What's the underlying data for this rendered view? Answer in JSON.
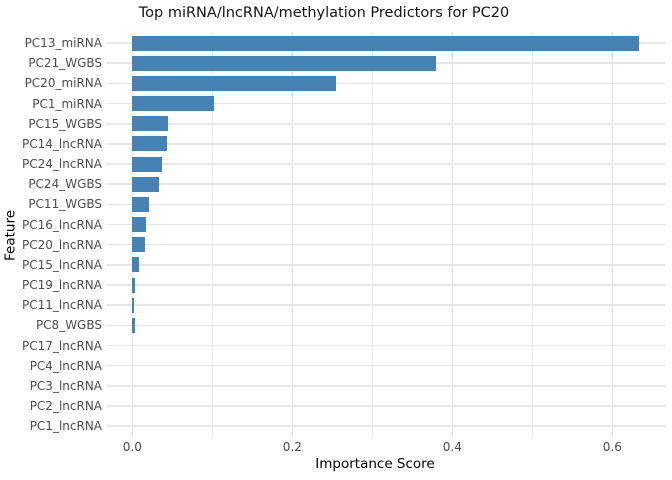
{
  "chart_data": {
    "type": "bar",
    "orientation": "horizontal",
    "title": "Top miRNA/lncRNA/methylation Predictors for PC20",
    "xlabel": "Importance Score",
    "ylabel": "Feature",
    "categories": [
      "PC13_miRNA",
      "PC21_WGBS",
      "PC20_miRNA",
      "PC1_miRNA",
      "PC15_WGBS",
      "PC14_lncRNA",
      "PC24_lncRNA",
      "PC24_WGBS",
      "PC11_WGBS",
      "PC16_lncRNA",
      "PC20_lncRNA",
      "PC15_lncRNA",
      "PC19_lncRNA",
      "PC11_lncRNA",
      "PC8_WGBS",
      "PC17_lncRNA",
      "PC4_lncRNA",
      "PC3_lncRNA",
      "PC2_lncRNA",
      "PC1_lncRNA"
    ],
    "values": [
      0.634,
      0.38,
      0.255,
      0.102,
      0.045,
      0.043,
      0.037,
      0.033,
      0.021,
      0.017,
      0.016,
      0.008,
      0.004,
      0.0025,
      0.003,
      0,
      0,
      0,
      0,
      0
    ],
    "xticks": [
      0,
      0.2,
      0.4,
      0.6
    ],
    "xtick_labels": [
      "0.0",
      "0.2",
      "0.4",
      "0.6"
    ],
    "minor_xticks": [
      0.1,
      0.3,
      0.5
    ],
    "xlim": [
      -0.032,
      0.666
    ],
    "grid": true,
    "legend": "none",
    "bar_color": "#4682B4",
    "background_color": "#ffffff",
    "gridline_color": "#e7e7e7",
    "tick_label_color": "#4d4d4d"
  }
}
